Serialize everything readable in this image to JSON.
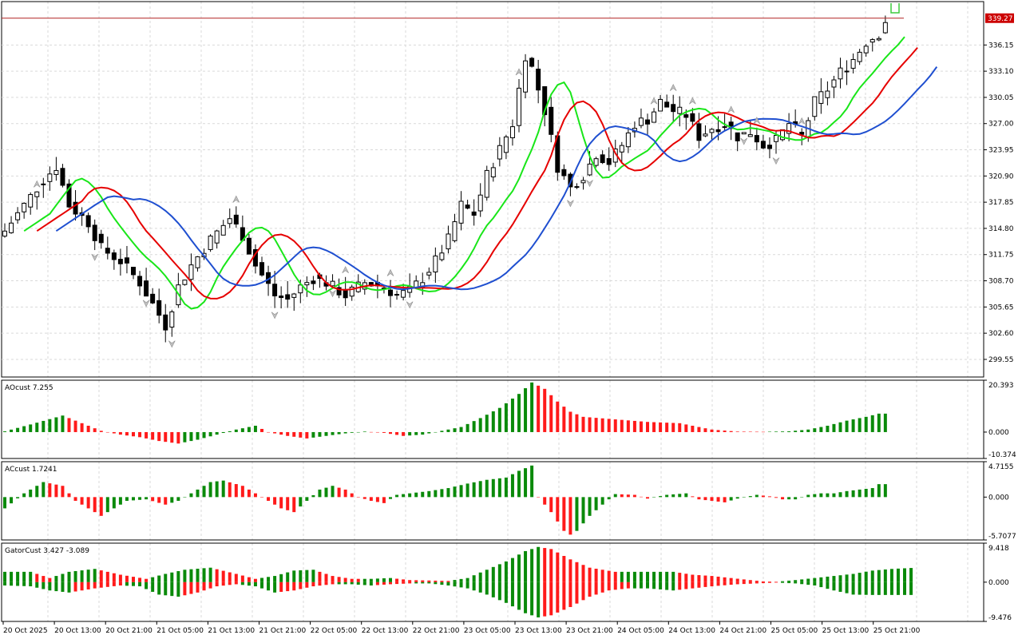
{
  "chart_data": [
    {
      "type": "candlestick",
      "ylim": [
        297.5,
        341.2
      ],
      "y_ticks": [
        "336.15",
        "333.10",
        "330.05",
        "327.00",
        "323.95",
        "320.90",
        "317.85",
        "314.80",
        "311.75",
        "308.70",
        "305.65",
        "302.60",
        "299.55"
      ],
      "current_price": "339.27",
      "current_price_value": 339.27,
      "x_labels": [
        "20 Oct 2025",
        "20 Oct 13:00",
        "20 Oct 21:00",
        "21 Oct 05:00",
        "21 Oct 13:00",
        "21 Oct 21:00",
        "22 Oct 05:00",
        "22 Oct 13:00",
        "22 Oct 21:00",
        "23 Oct 05:00",
        "23 Oct 13:00",
        "23 Oct 21:00",
        "24 Oct 05:00",
        "24 Oct 13:00",
        "24 Oct 21:00",
        "25 Oct 05:00",
        "25 Oct 13:00",
        "25 Oct 21:00"
      ],
      "close_keyframes": [
        [
          0,
          314.5
        ],
        [
          3,
          317.5
        ],
        [
          6,
          320.5
        ],
        [
          8,
          322.0
        ],
        [
          10,
          317.5
        ],
        [
          13,
          315.5
        ],
        [
          15,
          312.5
        ],
        [
          18,
          311.0
        ],
        [
          21,
          308.5
        ],
        [
          23,
          306.0
        ],
        [
          25,
          303.5
        ],
        [
          27,
          308.0
        ],
        [
          29,
          310.5
        ],
        [
          32,
          313.5
        ],
        [
          35,
          316.0
        ],
        [
          37,
          314.0
        ],
        [
          39,
          310.5
        ],
        [
          42,
          307.0
        ],
        [
          44,
          306.5
        ],
        [
          46,
          308.0
        ],
        [
          48,
          309.0
        ],
        [
          50,
          308.5
        ],
        [
          53,
          307.0
        ],
        [
          56,
          308.5
        ],
        [
          59,
          308.0
        ],
        [
          61,
          307.0
        ],
        [
          63,
          307.5
        ],
        [
          65,
          309.0
        ],
        [
          67,
          311.0
        ],
        [
          69,
          313.5
        ],
        [
          71,
          317.5
        ],
        [
          73,
          316.5
        ],
        [
          75,
          321.0
        ],
        [
          77,
          324.0
        ],
        [
          79,
          327.0
        ],
        [
          80,
          331.0
        ],
        [
          81,
          335.0
        ],
        [
          82,
          333.5
        ],
        [
          84,
          328.5
        ],
        [
          86,
          322.0
        ],
        [
          88,
          319.5
        ],
        [
          90,
          321.0
        ],
        [
          92,
          323.5
        ],
        [
          94,
          322.5
        ],
        [
          96,
          324.5
        ],
        [
          98,
          327.0
        ],
        [
          100,
          327.5
        ],
        [
          102,
          329.5
        ],
        [
          104,
          328.5
        ],
        [
          106,
          328.0
        ],
        [
          108,
          325.5
        ],
        [
          110,
          326.5
        ],
        [
          112,
          327.0
        ],
        [
          114,
          325.5
        ],
        [
          116,
          326.0
        ],
        [
          118,
          324.5
        ],
        [
          120,
          325.0
        ],
        [
          122,
          327.0
        ],
        [
          124,
          325.5
        ],
        [
          126,
          329.5
        ],
        [
          128,
          331.0
        ],
        [
          130,
          333.0
        ],
        [
          132,
          334.5
        ],
        [
          134,
          336.5
        ],
        [
          136,
          337.5
        ],
        [
          137,
          339.0
        ]
      ],
      "down_fractals": [
        14,
        22,
        26,
        42,
        51,
        63,
        88,
        91,
        115,
        120
      ],
      "up_fractals": [
        5,
        36,
        53,
        60,
        80,
        101,
        104,
        107,
        113,
        117,
        124
      ],
      "series": [
        {
          "name": "",
          "color": "#19e619",
          "period": 5,
          "shift": 3
        },
        {
          "name": "",
          "color": "#e60000",
          "period": 8,
          "shift": 5
        },
        {
          "name": "",
          "color": "#1f4fd0",
          "period": 13,
          "shift": 8
        }
      ]
    },
    {
      "type": "bar",
      "label": "AOcust 7.255",
      "ylim": [
        -10.374,
        20.393
      ],
      "y_ticks": [
        "20.393",
        "0.000",
        "-10.374"
      ],
      "bars_count": 138,
      "keyframes": [
        [
          0,
          0.3
        ],
        [
          4,
          3.0
        ],
        [
          9,
          6.5
        ],
        [
          12,
          3.5
        ],
        [
          15,
          0.5
        ],
        [
          18,
          -1.0
        ],
        [
          21,
          -2.0
        ],
        [
          24,
          -3.5
        ],
        [
          27,
          -4.5
        ],
        [
          30,
          -3.0
        ],
        [
          33,
          -1.0
        ],
        [
          36,
          1.0
        ],
        [
          39,
          2.5
        ],
        [
          41,
          0
        ],
        [
          44,
          -1.5
        ],
        [
          47,
          -2.5
        ],
        [
          50,
          -1.5
        ],
        [
          53,
          -0.5
        ],
        [
          56,
          0.2
        ],
        [
          59,
          -0.3
        ],
        [
          62,
          -1.5
        ],
        [
          65,
          -1.0
        ],
        [
          68,
          0.5
        ],
        [
          71,
          2.0
        ],
        [
          74,
          5.5
        ],
        [
          77,
          9.5
        ],
        [
          80,
          15.0
        ],
        [
          82,
          19.5
        ],
        [
          84,
          17.0
        ],
        [
          86,
          12.0
        ],
        [
          88,
          8.0
        ],
        [
          90,
          6.0
        ],
        [
          95,
          5.0
        ],
        [
          100,
          4.0
        ],
        [
          105,
          3.5
        ],
        [
          110,
          1.0
        ],
        [
          114,
          0.2
        ],
        [
          118,
          0.1
        ],
        [
          122,
          0.3
        ],
        [
          125,
          1.0
        ],
        [
          128,
          2.5
        ],
        [
          131,
          4.5
        ],
        [
          134,
          6.0
        ],
        [
          136,
          7.255
        ]
      ]
    },
    {
      "type": "bar",
      "label": "ACcust 1.7241",
      "ylim": [
        -5.7077,
        4.7155
      ],
      "y_ticks": [
        "4.7155",
        "0.000",
        "-5.7077"
      ],
      "bars_count": 138,
      "keyframes": [
        [
          0,
          -1.5
        ],
        [
          3,
          0.5
        ],
        [
          6,
          2.0
        ],
        [
          9,
          1.5
        ],
        [
          11,
          -0.5
        ],
        [
          13,
          -1.5
        ],
        [
          15,
          -2.5
        ],
        [
          17,
          -1.5
        ],
        [
          19,
          -0.5
        ],
        [
          22,
          -0.3
        ],
        [
          25,
          -1.0
        ],
        [
          27,
          -0.5
        ],
        [
          29,
          0.5
        ],
        [
          32,
          2.0
        ],
        [
          34,
          2.2
        ],
        [
          37,
          1.5
        ],
        [
          39,
          0.5
        ],
        [
          41,
          -0.5
        ],
        [
          43,
          -1.5
        ],
        [
          45,
          -2.0
        ],
        [
          47,
          -0.5
        ],
        [
          49,
          1.0
        ],
        [
          51,
          1.5
        ],
        [
          53,
          1.0
        ],
        [
          55,
          0
        ],
        [
          57,
          -0.5
        ],
        [
          59,
          -0.8
        ],
        [
          61,
          0.3
        ],
        [
          63,
          0.5
        ],
        [
          66,
          0.8
        ],
        [
          69,
          1.2
        ],
        [
          72,
          1.8
        ],
        [
          75,
          2.3
        ],
        [
          78,
          2.6
        ],
        [
          80,
          3.5
        ],
        [
          82,
          4.2
        ],
        [
          83,
          0
        ],
        [
          85,
          -2.0
        ],
        [
          87,
          -4.5
        ],
        [
          88,
          -5.0
        ],
        [
          89,
          -4.5
        ],
        [
          91,
          -2.5
        ],
        [
          93,
          -1.0
        ],
        [
          95,
          0.4
        ],
        [
          98,
          0.3
        ],
        [
          100,
          -0.2
        ],
        [
          103,
          0.3
        ],
        [
          106,
          0.5
        ],
        [
          108,
          -0.3
        ],
        [
          110,
          -0.5
        ],
        [
          112,
          -0.7
        ],
        [
          114,
          -0.2
        ],
        [
          117,
          0.3
        ],
        [
          119,
          0.1
        ],
        [
          121,
          -0.3
        ],
        [
          123,
          -0.3
        ],
        [
          125,
          0.3
        ],
        [
          127,
          0.5
        ],
        [
          129,
          0.5
        ],
        [
          131,
          0.8
        ],
        [
          133,
          1.0
        ],
        [
          135,
          1.2
        ],
        [
          136,
          1.7241
        ]
      ]
    },
    {
      "type": "bar",
      "label": "GatorCust 3.427 -3.089",
      "ylim": [
        -9.476,
        9.418
      ],
      "y_ticks": [
        "9.418",
        "0.000",
        "-9.476"
      ],
      "bars_count": 142,
      "upper_keyframes": [
        [
          0,
          2.5
        ],
        [
          4,
          2.5
        ],
        [
          7,
          1.0
        ],
        [
          10,
          2.5
        ],
        [
          14,
          3.2
        ],
        [
          18,
          1.8
        ],
        [
          22,
          0.8
        ],
        [
          25,
          2.0
        ],
        [
          28,
          3.0
        ],
        [
          32,
          3.5
        ],
        [
          36,
          2.0
        ],
        [
          39,
          0.8
        ],
        [
          42,
          1.5
        ],
        [
          45,
          2.8
        ],
        [
          48,
          3.0
        ],
        [
          51,
          1.5
        ],
        [
          54,
          0.8
        ],
        [
          57,
          0.8
        ],
        [
          60,
          1.0
        ],
        [
          63,
          0.5
        ],
        [
          66,
          0.4
        ],
        [
          69,
          0.3
        ],
        [
          72,
          1.0
        ],
        [
          75,
          3.0
        ],
        [
          78,
          5.0
        ],
        [
          81,
          7.5
        ],
        [
          83,
          8.5
        ],
        [
          85,
          8.0
        ],
        [
          88,
          5.5
        ],
        [
          91,
          3.5
        ],
        [
          95,
          2.5
        ],
        [
          100,
          2.5
        ],
        [
          104,
          2.5
        ],
        [
          107,
          1.8
        ],
        [
          110,
          1.5
        ],
        [
          113,
          1.0
        ],
        [
          116,
          0.5
        ],
        [
          118,
          0.2
        ],
        [
          120,
          0.1
        ],
        [
          123,
          0.5
        ],
        [
          126,
          1.0
        ],
        [
          129,
          1.5
        ],
        [
          132,
          2.0
        ],
        [
          135,
          2.8
        ],
        [
          138,
          3.2
        ],
        [
          141,
          3.427
        ]
      ],
      "lower_keyframes": [
        [
          0,
          -0.8
        ],
        [
          4,
          -1.0
        ],
        [
          7,
          -2.0
        ],
        [
          10,
          -2.5
        ],
        [
          14,
          -1.5
        ],
        [
          18,
          -0.8
        ],
        [
          21,
          -1.0
        ],
        [
          24,
          -3.0
        ],
        [
          27,
          -3.5
        ],
        [
          30,
          -2.5
        ],
        [
          33,
          -1.0
        ],
        [
          36,
          -0.5
        ],
        [
          39,
          -1.0
        ],
        [
          42,
          -2.5
        ],
        [
          45,
          -2.0
        ],
        [
          48,
          -1.0
        ],
        [
          51,
          -0.5
        ],
        [
          54,
          -0.5
        ],
        [
          57,
          -0.8
        ],
        [
          60,
          -0.5
        ],
        [
          63,
          -0.3
        ],
        [
          66,
          -0.3
        ],
        [
          69,
          -0.8
        ],
        [
          72,
          -1.5
        ],
        [
          75,
          -3.0
        ],
        [
          78,
          -5.0
        ],
        [
          81,
          -7.5
        ],
        [
          83,
          -8.5
        ],
        [
          85,
          -8.0
        ],
        [
          88,
          -6.0
        ],
        [
          91,
          -3.5
        ],
        [
          94,
          -2.0
        ],
        [
          97,
          -1.5
        ],
        [
          100,
          -1.5
        ],
        [
          104,
          -2.0
        ],
        [
          107,
          -1.5
        ],
        [
          110,
          -1.0
        ],
        [
          114,
          -0.5
        ],
        [
          117,
          -0.3
        ],
        [
          120,
          -0.1
        ],
        [
          123,
          -0.3
        ],
        [
          126,
          -0.8
        ],
        [
          129,
          -2.0
        ],
        [
          132,
          -3.0
        ],
        [
          135,
          -3.089
        ]
      ]
    }
  ]
}
